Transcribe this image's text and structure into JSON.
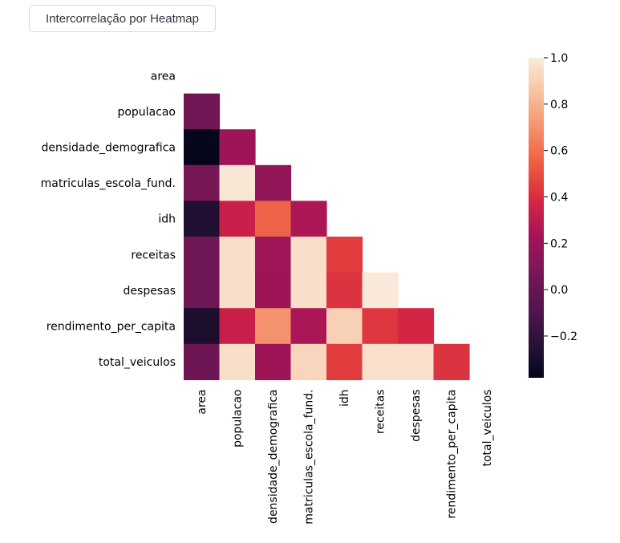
{
  "ui": {
    "button_label": "Intercorrelação por Heatmap"
  },
  "chart_data": {
    "type": "heatmap",
    "title": "",
    "rows": [
      "area",
      "populacao",
      "densidade_demografica",
      "matriculas_escola_fund.",
      "idh",
      "receitas",
      "despesas",
      "rendimento_per_capita",
      "total_veiculos"
    ],
    "columns": [
      "area",
      "populacao",
      "densidade_demografica",
      "matriculas_escola_fund.",
      "idh",
      "receitas",
      "despesas",
      "rendimento_per_capita",
      "total_veiculos"
    ],
    "mask": "upper triangle including diagonal",
    "values": [
      [
        null,
        null,
        null,
        null,
        null,
        null,
        null,
        null,
        null
      ],
      [
        0.04,
        null,
        null,
        null,
        null,
        null,
        null,
        null,
        null
      ],
      [
        -0.37,
        0.2,
        null,
        null,
        null,
        null,
        null,
        null,
        null
      ],
      [
        0.06,
        0.98,
        0.16,
        null,
        null,
        null,
        null,
        null,
        null
      ],
      [
        -0.26,
        0.34,
        0.56,
        0.26,
        null,
        null,
        null,
        null,
        null
      ],
      [
        0.03,
        0.95,
        0.21,
        0.95,
        0.45,
        null,
        null,
        null,
        null
      ],
      [
        0.03,
        0.95,
        0.2,
        0.95,
        0.42,
        0.99,
        null,
        null,
        null
      ],
      [
        -0.28,
        0.34,
        0.7,
        0.25,
        0.9,
        0.43,
        0.38,
        null,
        null
      ],
      [
        0.02,
        0.95,
        0.2,
        0.92,
        0.45,
        0.96,
        0.96,
        0.42,
        null
      ]
    ],
    "colormap": "rocket",
    "vmin": -0.38,
    "vmax": 1.0,
    "colorbar_ticks": [
      1.0,
      0.8,
      0.6,
      0.4,
      0.2,
      0.0,
      -0.2
    ],
    "colorbar_tick_labels": [
      "1.0",
      "0.8",
      "0.6",
      "0.4",
      "0.2",
      "0.0",
      "−0.2"
    ],
    "colorbar_position": "right"
  }
}
